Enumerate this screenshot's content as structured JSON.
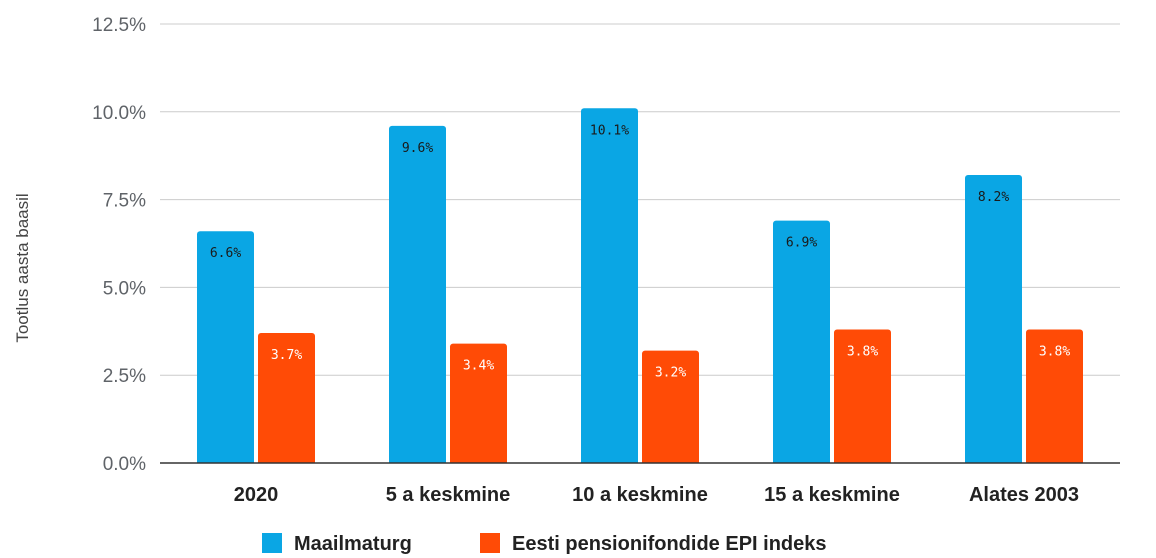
{
  "chart_data": {
    "type": "bar",
    "categories": [
      "2020",
      "5 a keskmine",
      "10 a keskmine",
      "15 a keskmine",
      "Alates 2003"
    ],
    "series": [
      {
        "name": "Maailmaturg",
        "color": "#0aa6e4",
        "values": [
          6.6,
          9.6,
          10.1,
          6.9,
          8.2
        ],
        "labels": [
          "6.6%",
          "9.6%",
          "10.1%",
          "6.9%",
          "8.2%"
        ],
        "label_color": "#1a1a1a"
      },
      {
        "name": "Eesti pensionifondide EPI indeks",
        "color": "#ff4b06",
        "values": [
          3.7,
          3.4,
          3.2,
          3.8,
          3.8
        ],
        "labels": [
          "3.7%",
          "3.4%",
          "3.2%",
          "3.8%",
          "3.8%"
        ],
        "label_color": "#ffffff"
      }
    ],
    "ylabel": "Tootlus aasta baasil",
    "ylim": [
      0,
      12.5
    ],
    "yticks": [
      0,
      2.5,
      5,
      7.5,
      10,
      12.5
    ],
    "ytick_labels": [
      "0.0%",
      "2.5%",
      "5.0%",
      "7.5%",
      "10.0%",
      "12.5%"
    ],
    "grid": true,
    "legend_position": "bottom",
    "gridline_color": "#cccccc",
    "baseline_color": "#333333"
  }
}
